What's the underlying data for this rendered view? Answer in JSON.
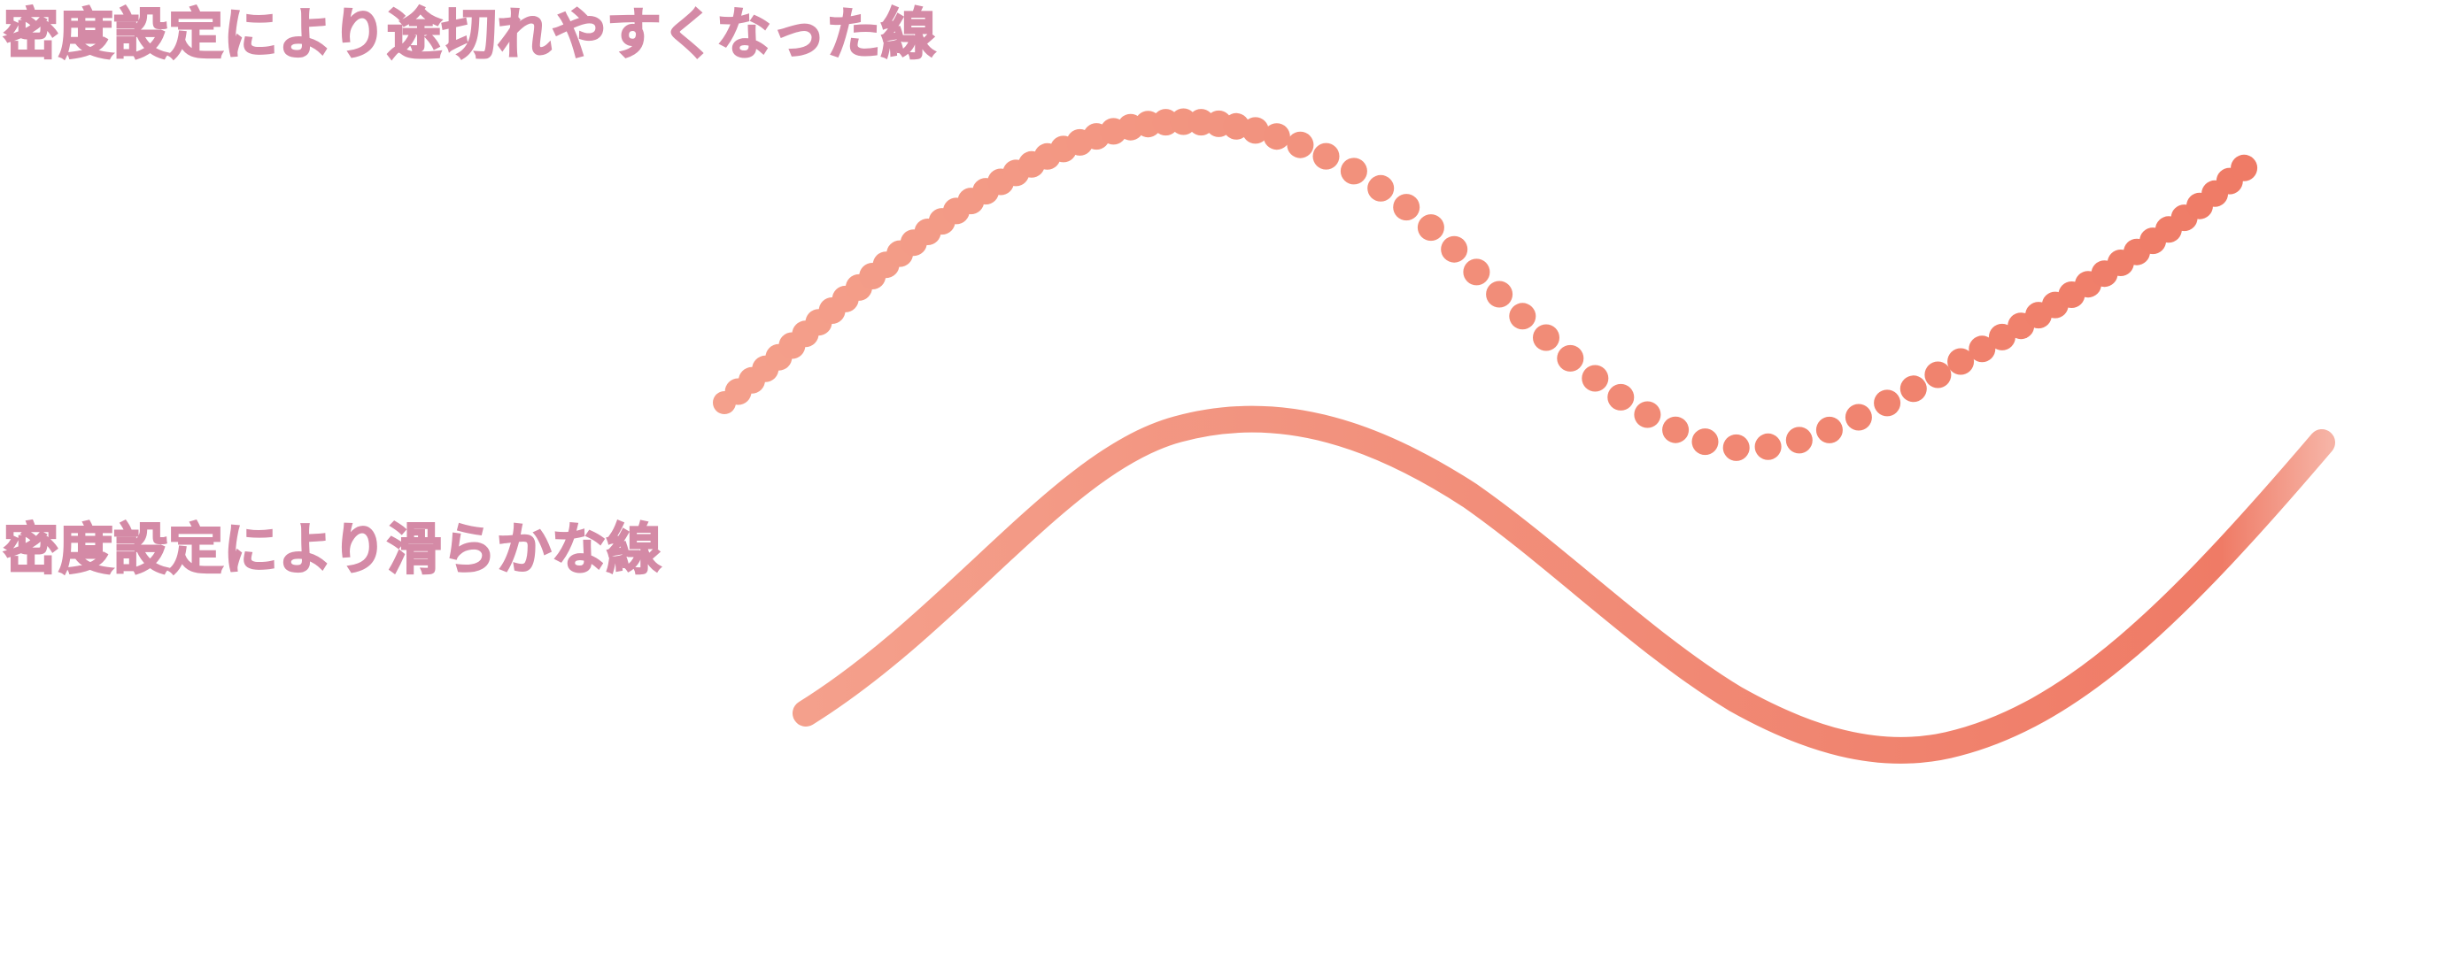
{
  "captions": {
    "dotted": "密度設定により途切れやすくなった線",
    "smooth": "密度設定により滑らかな線"
  },
  "colors": {
    "caption": "#d48aa6",
    "stroke_start": "#f4a08c",
    "stroke_end": "#ef7b66",
    "stroke_tip": "#f6b3a5"
  }
}
